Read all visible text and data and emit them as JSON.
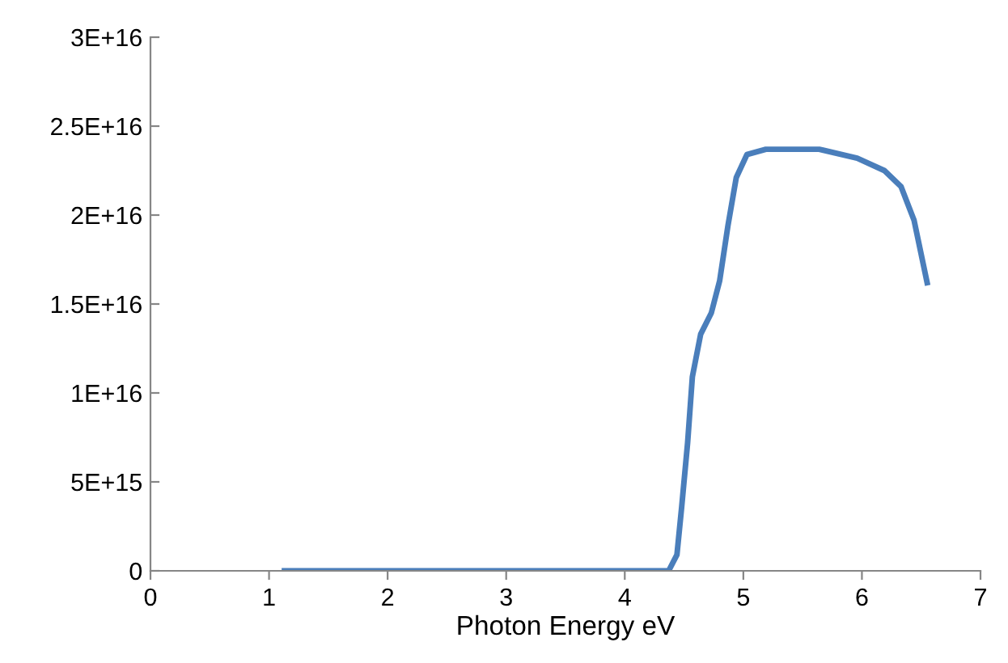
{
  "chart_data": {
    "type": "line",
    "xlabel": "Photon Energy eV",
    "series": [
      {
        "color": "#4a7ebb",
        "x": [
          1.13,
          2.0,
          3.0,
          4.05,
          4.37,
          4.44,
          4.48,
          4.53,
          4.57,
          4.64,
          4.73,
          4.8,
          4.87,
          4.94,
          5.03,
          5.19,
          5.64,
          5.96,
          6.19,
          6.33,
          6.44,
          6.55
        ],
        "values": [
          0,
          0,
          0,
          0,
          0,
          900000000000000.0,
          3600000000000000.0,
          7200000000000000.0,
          1.09e+16,
          1.33e+16,
          1.45e+16,
          1.63e+16,
          1.94e+16,
          2.21e+16,
          2.34e+16,
          2.37e+16,
          2.37e+16,
          2.32e+16,
          2.25e+16,
          2.16e+16,
          1.97e+16,
          1.62e+16
        ]
      }
    ],
    "xlim": [
      0,
      7
    ],
    "xticks": [
      0,
      1,
      2,
      3,
      4,
      5,
      6,
      7
    ],
    "ylim": [
      0,
      3e+16
    ],
    "yticks": [
      0,
      {
        "value": 5000000000000000.0,
        "label": "5E+15"
      },
      {
        "value": 1e+16,
        "label": "1E+16"
      },
      {
        "value": 1.5e+16,
        "label": "1.5E+16"
      },
      {
        "value": 2e+16,
        "label": "2E+16"
      },
      {
        "value": 2.5e+16,
        "label": "2.5E+16"
      },
      {
        "value": 3e+16,
        "label": "3E+16"
      }
    ],
    "grid": false,
    "legend": false,
    "marker": "none",
    "line_style": "solid"
  }
}
